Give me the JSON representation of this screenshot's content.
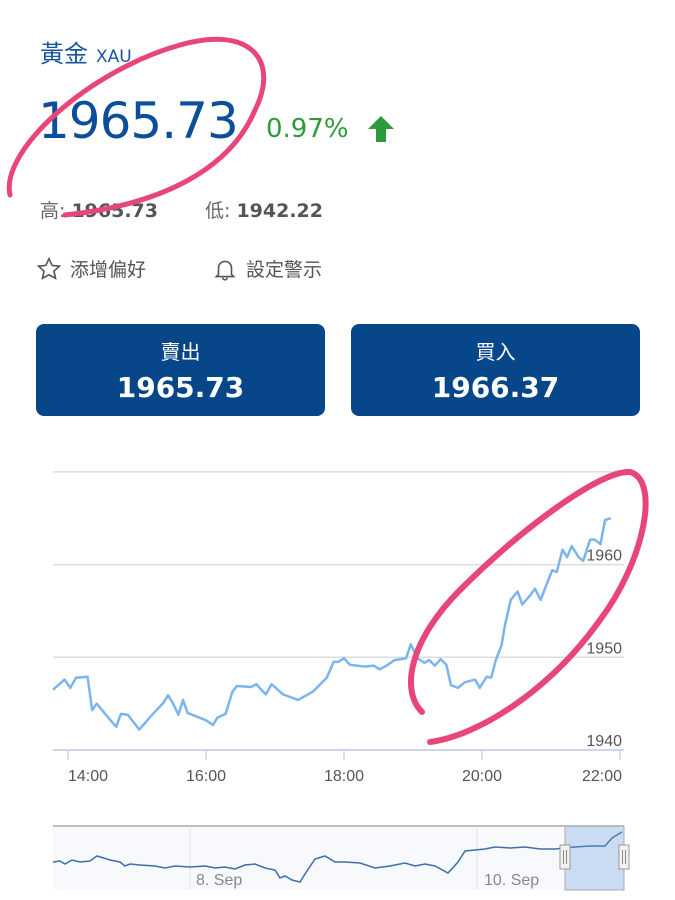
{
  "header": {
    "name": "黃金",
    "symbol": "XAU"
  },
  "quote": {
    "price": "1965.73",
    "change_pct": "0.97%",
    "direction": "up",
    "high_label": "高:",
    "high": "1965.73",
    "low_label": "低:",
    "low": "1942.22"
  },
  "actions": [
    {
      "label": "添增偏好",
      "icon": "star-outline-icon"
    },
    {
      "label": "設定警示",
      "icon": "bell-icon"
    }
  ],
  "buttons": {
    "sell": {
      "label": "賣出",
      "value": "1965.73"
    },
    "buy": {
      "label": "買入",
      "value": "1966.37"
    }
  },
  "colors": {
    "brand": "#08468a",
    "up": "#2e9a3c",
    "line": "#7cb5ec",
    "annotation": "#e8457a"
  },
  "chart_data": {
    "type": "line",
    "x_ticks": [
      "14:00",
      "16:00",
      "18:00",
      "20:00",
      "22:00"
    ],
    "y_ticks": [
      1940,
      1950,
      1960
    ],
    "ylim": [
      1940,
      1970
    ],
    "grid": true,
    "points": [
      [
        "13:47",
        1946.5
      ],
      [
        "13:57",
        1947.6
      ],
      [
        "14:02",
        1946.7
      ],
      [
        "14:07",
        1947.8
      ],
      [
        "14:17",
        1947.9
      ],
      [
        "14:21",
        1944.3
      ],
      [
        "14:25",
        1945.0
      ],
      [
        "14:37",
        1943.2
      ],
      [
        "14:42",
        1942.5
      ],
      [
        "14:46",
        1943.9
      ],
      [
        "14:52",
        1943.8
      ],
      [
        "15:02",
        1942.2
      ],
      [
        "15:11",
        1943.5
      ],
      [
        "15:23",
        1945.1
      ],
      [
        "15:27",
        1945.9
      ],
      [
        "15:31",
        1945.1
      ],
      [
        "15:36",
        1943.8
      ],
      [
        "15:40",
        1945.4
      ],
      [
        "15:44",
        1944.0
      ],
      [
        "16:00",
        1943.2
      ],
      [
        "16:06",
        1942.7
      ],
      [
        "16:10",
        1943.5
      ],
      [
        "16:17",
        1943.9
      ],
      [
        "16:23",
        1946.3
      ],
      [
        "16:27",
        1946.9
      ],
      [
        "16:39",
        1946.8
      ],
      [
        "16:44",
        1947.1
      ],
      [
        "16:48",
        1946.5
      ],
      [
        "16:52",
        1946.0
      ],
      [
        "16:57",
        1947.1
      ],
      [
        "17:07",
        1946.0
      ],
      [
        "17:20",
        1945.4
      ],
      [
        "17:33",
        1946.3
      ],
      [
        "17:45",
        1947.8
      ],
      [
        "17:51",
        1949.5
      ],
      [
        "17:55",
        1949.5
      ],
      [
        "18:00",
        1949.9
      ],
      [
        "18:05",
        1949.2
      ],
      [
        "18:18",
        1949.0
      ],
      [
        "18:26",
        1949.1
      ],
      [
        "18:31",
        1948.7
      ],
      [
        "18:37",
        1949.1
      ],
      [
        "18:44",
        1949.7
      ],
      [
        "18:54",
        1949.9
      ],
      [
        "18:58",
        1951.4
      ],
      [
        "19:04",
        1949.9
      ],
      [
        "19:10",
        1949.4
      ],
      [
        "19:14",
        1949.7
      ],
      [
        "19:19",
        1949.1
      ],
      [
        "19:24",
        1949.8
      ],
      [
        "19:29",
        1949.2
      ],
      [
        "19:33",
        1947.0
      ],
      [
        "19:39",
        1946.7
      ],
      [
        "19:45",
        1947.3
      ],
      [
        "19:54",
        1947.6
      ],
      [
        "19:58",
        1946.7
      ],
      [
        "20:04",
        1947.9
      ],
      [
        "20:08",
        1947.8
      ],
      [
        "20:12",
        1949.7
      ],
      [
        "20:17",
        1951.3
      ],
      [
        "20:20",
        1953.5
      ],
      [
        "20:25",
        1956.2
      ],
      [
        "20:31",
        1957.1
      ],
      [
        "20:35",
        1955.7
      ],
      [
        "20:42",
        1956.7
      ],
      [
        "20:46",
        1957.4
      ],
      [
        "20:51",
        1956.2
      ],
      [
        "20:56",
        1957.8
      ],
      [
        "21:01",
        1959.4
      ],
      [
        "21:05",
        1959.2
      ],
      [
        "21:10",
        1961.6
      ],
      [
        "21:14",
        1960.8
      ],
      [
        "21:18",
        1962.0
      ],
      [
        "21:24",
        1960.8
      ],
      [
        "21:28",
        1960.4
      ],
      [
        "21:34",
        1962.7
      ],
      [
        "21:38",
        1962.7
      ],
      [
        "21:43",
        1962.2
      ],
      [
        "21:47",
        1964.8
      ],
      [
        "21:52",
        1965.0
      ]
    ],
    "navigator": {
      "labels": [
        "8. Sep",
        "10. Sep"
      ]
    }
  }
}
